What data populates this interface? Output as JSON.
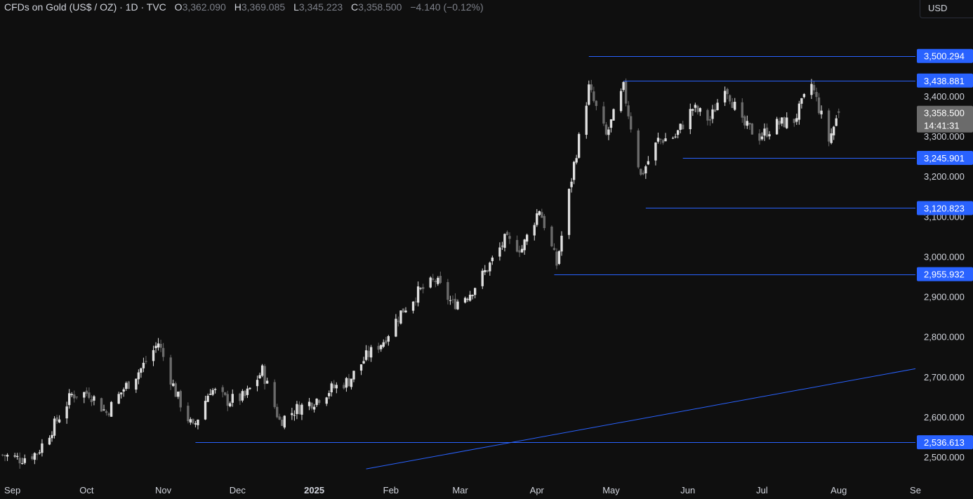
{
  "header": {
    "symbol": "CFDs on Gold (US$ / OZ) · 1D · TVC",
    "o_label": "O",
    "o_value": "3,362.090",
    "h_label": "H",
    "h_value": "3,369.085",
    "l_label": "L",
    "l_value": "3,345.223",
    "c_label": "C",
    "c_value": "3,358.500",
    "change": "−4.140 (−0.12%)"
  },
  "currency_button": "USD",
  "countdown": "14:41:31",
  "colors": {
    "background": "#0f0f0f",
    "candle_up": "#e0e0e0",
    "candle_down": "#6b6b6b",
    "level_line": "#2962ff",
    "level_label_bg": "#2962ff",
    "price_label_bg": "#6b6b6b",
    "axis_text": "#d1d4dc"
  },
  "chart_data": {
    "type": "candlestick",
    "title": "CFDs on Gold (US$ / OZ) · 1D · TVC",
    "ylim": [
      2470,
      3560
    ],
    "y_ticks": [
      {
        "value": 2500,
        "label": "2,500.000"
      },
      {
        "value": 2600,
        "label": "2,600.000"
      },
      {
        "value": 2700,
        "label": "2,700.000"
      },
      {
        "value": 2800,
        "label": "2,800.000"
      },
      {
        "value": 2900,
        "label": "2,900.000"
      },
      {
        "value": 3000,
        "label": "3,000.000"
      },
      {
        "value": 3100,
        "label": "3,100.000"
      },
      {
        "value": 3200,
        "label": "3,200.000"
      },
      {
        "value": 3300,
        "label": "3,300.000"
      },
      {
        "value": 3400,
        "label": "3,400.000"
      }
    ],
    "x_ticks": [
      {
        "date": "2024-09-01",
        "label": "Sep",
        "bold": false
      },
      {
        "date": "2024-10-01",
        "label": "Oct",
        "bold": false
      },
      {
        "date": "2024-11-01",
        "label": "Nov",
        "bold": false
      },
      {
        "date": "2024-12-01",
        "label": "Dec",
        "bold": false
      },
      {
        "date": "2025-01-01",
        "label": "2025",
        "bold": true
      },
      {
        "date": "2025-02-01",
        "label": "Feb",
        "bold": false
      },
      {
        "date": "2025-03-01",
        "label": "Mar",
        "bold": false
      },
      {
        "date": "2025-04-01",
        "label": "Apr",
        "bold": false
      },
      {
        "date": "2025-05-01",
        "label": "May",
        "bold": false
      },
      {
        "date": "2025-06-01",
        "label": "Jun",
        "bold": false
      },
      {
        "date": "2025-07-01",
        "label": "Jul",
        "bold": false
      },
      {
        "date": "2025-08-01",
        "label": "Aug",
        "bold": false
      },
      {
        "date": "2025-09-01",
        "label": "Se",
        "bold": false
      }
    ],
    "x_range": [
      "2024-08-27",
      "2025-09-01"
    ],
    "close_series": [
      [
        "2024-08-28",
        2505
      ],
      [
        "2024-09-04",
        2495
      ],
      [
        "2024-09-11",
        2510
      ],
      [
        "2024-09-18",
        2580
      ],
      [
        "2024-09-25",
        2655
      ],
      [
        "2024-10-02",
        2660
      ],
      [
        "2024-10-09",
        2610
      ],
      [
        "2024-10-16",
        2670
      ],
      [
        "2024-10-23",
        2720
      ],
      [
        "2024-10-30",
        2785
      ],
      [
        "2024-11-06",
        2660
      ],
      [
        "2024-11-13",
        2570
      ],
      [
        "2024-11-20",
        2670
      ],
      [
        "2024-11-27",
        2640
      ],
      [
        "2024-12-04",
        2650
      ],
      [
        "2024-12-11",
        2715
      ],
      [
        "2024-12-18",
        2590
      ],
      [
        "2024-12-25",
        2620
      ],
      [
        "2025-01-01",
        2640
      ],
      [
        "2025-01-08",
        2670
      ],
      [
        "2025-01-15",
        2690
      ],
      [
        "2025-01-22",
        2750
      ],
      [
        "2025-01-29",
        2790
      ],
      [
        "2025-02-05",
        2860
      ],
      [
        "2025-02-12",
        2910
      ],
      [
        "2025-02-19",
        2940
      ],
      [
        "2025-02-26",
        2880
      ],
      [
        "2025-03-05",
        2910
      ],
      [
        "2025-03-12",
        2970
      ],
      [
        "2025-03-19",
        3040
      ],
      [
        "2025-03-26",
        3020
      ],
      [
        "2025-04-02",
        3120
      ],
      [
        "2025-04-09",
        2980
      ],
      [
        "2025-04-16",
        3230
      ],
      [
        "2025-04-22",
        3420
      ],
      [
        "2025-04-29",
        3300
      ],
      [
        "2025-05-06",
        3420
      ],
      [
        "2025-05-13",
        3200
      ],
      [
        "2025-05-20",
        3290
      ],
      [
        "2025-05-27",
        3300
      ],
      [
        "2025-06-03",
        3370
      ],
      [
        "2025-06-10",
        3340
      ],
      [
        "2025-06-16",
        3430
      ],
      [
        "2025-06-23",
        3330
      ],
      [
        "2025-06-30",
        3300
      ],
      [
        "2025-07-07",
        3330
      ],
      [
        "2025-07-14",
        3340
      ],
      [
        "2025-07-21",
        3430
      ],
      [
        "2025-07-28",
        3290
      ],
      [
        "2025-08-01",
        3358.5
      ]
    ],
    "last_candle": {
      "open": 3362.09,
      "high": 3369.085,
      "low": 3345.223,
      "close": 3358.5
    },
    "current_price": {
      "value": 3358.5,
      "label": "3,358.500"
    },
    "levels": [
      {
        "value": 3500.294,
        "label": "3,500.294",
        "from": "2025-04-22"
      },
      {
        "value": 3438.881,
        "label": "3,438.881",
        "from": "2025-05-06"
      },
      {
        "value": 3245.901,
        "label": "3,245.901",
        "from": "2025-05-30"
      },
      {
        "value": 3120.823,
        "label": "3,120.823",
        "from": "2025-05-15"
      },
      {
        "value": 2955.932,
        "label": "2,955.932",
        "from": "2025-04-08"
      },
      {
        "value": 2536.613,
        "label": "2,536.613",
        "from": "2024-11-14"
      }
    ],
    "trendline": {
      "from": [
        "2025-01-22",
        2470
      ],
      "to": [
        "2025-09-01",
        2720
      ]
    }
  }
}
